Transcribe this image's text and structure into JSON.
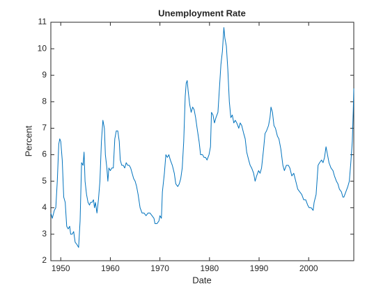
{
  "chart_data": {
    "type": "line",
    "title": "Unemployment Rate",
    "xlabel": "Date",
    "ylabel": "Percent",
    "x": [
      1948.0,
      1948.3,
      1948.7,
      1949.0,
      1949.3,
      1949.6,
      1949.8,
      1950.0,
      1950.3,
      1950.6,
      1950.9,
      1951.2,
      1951.5,
      1951.8,
      1952.0,
      1952.3,
      1952.6,
      1952.9,
      1953.3,
      1953.6,
      1953.9,
      1954.2,
      1954.5,
      1954.7,
      1954.9,
      1955.2,
      1955.5,
      1955.8,
      1956.0,
      1956.3,
      1956.6,
      1956.8,
      1957.0,
      1957.3,
      1957.6,
      1957.9,
      1958.2,
      1958.5,
      1958.8,
      1959.0,
      1959.3,
      1959.5,
      1959.7,
      1960.0,
      1960.3,
      1960.6,
      1960.9,
      1961.2,
      1961.5,
      1961.8,
      1962.0,
      1962.3,
      1962.6,
      1962.9,
      1963.2,
      1963.5,
      1963.8,
      1964.1,
      1964.4,
      1964.7,
      1965.0,
      1965.3,
      1965.6,
      1966.0,
      1966.4,
      1966.8,
      1967.2,
      1967.6,
      1968.0,
      1968.4,
      1968.8,
      1969.0,
      1969.4,
      1969.8,
      1970.0,
      1970.3,
      1970.5,
      1970.9,
      1971.2,
      1971.5,
      1971.8,
      1972.1,
      1972.5,
      1972.9,
      1973.2,
      1973.6,
      1973.9,
      1974.2,
      1974.5,
      1974.8,
      1975.1,
      1975.3,
      1975.5,
      1975.7,
      1976.0,
      1976.3,
      1976.6,
      1976.9,
      1977.2,
      1977.5,
      1977.9,
      1978.2,
      1978.6,
      1978.9,
      1979.2,
      1979.5,
      1979.9,
      1980.2,
      1980.4,
      1980.7,
      1981.0,
      1981.3,
      1981.7,
      1982.0,
      1982.3,
      1982.6,
      1982.9,
      1983.1,
      1983.4,
      1983.7,
      1984.0,
      1984.3,
      1984.6,
      1984.9,
      1985.2,
      1985.5,
      1985.9,
      1986.2,
      1986.5,
      1986.9,
      1987.2,
      1987.5,
      1987.9,
      1988.2,
      1988.5,
      1988.9,
      1989.2,
      1989.5,
      1989.9,
      1990.2,
      1990.5,
      1990.9,
      1991.2,
      1991.5,
      1991.9,
      1992.2,
      1992.4,
      1992.7,
      1993.0,
      1993.3,
      1993.7,
      1994.0,
      1994.4,
      1994.8,
      1995.1,
      1995.5,
      1995.9,
      1996.2,
      1996.6,
      1997.0,
      1997.4,
      1997.8,
      1998.2,
      1998.6,
      1999.0,
      1999.4,
      1999.8,
      2000.1,
      2000.5,
      2000.9,
      2001.1,
      2001.5,
      2001.9,
      2002.2,
      2002.6,
      2002.9,
      2003.2,
      2003.5,
      2003.8,
      2004.1,
      2004.5,
      2004.9,
      2005.2,
      2005.6,
      2005.9,
      2006.2,
      2006.6,
      2006.9,
      2007.1,
      2007.5,
      2007.9,
      2008.2,
      2008.5,
      2008.8,
      2009.0,
      2009.1
    ],
    "series": [
      {
        "name": "Unemployment Rate",
        "color": "#0072bd",
        "values": [
          3.8,
          3.6,
          3.9,
          4.0,
          5.0,
          6.4,
          6.6,
          6.5,
          5.8,
          4.4,
          4.2,
          3.3,
          3.2,
          3.3,
          3.0,
          3.0,
          3.1,
          2.7,
          2.6,
          2.5,
          3.5,
          5.7,
          5.6,
          6.1,
          5.0,
          4.5,
          4.2,
          4.1,
          4.2,
          4.2,
          4.3,
          4.0,
          4.2,
          3.8,
          4.3,
          5.0,
          6.5,
          7.3,
          7.0,
          6.0,
          5.5,
          5.0,
          5.5,
          5.4,
          5.5,
          5.5,
          6.6,
          6.9,
          6.9,
          6.5,
          5.8,
          5.6,
          5.6,
          5.5,
          5.7,
          5.6,
          5.6,
          5.5,
          5.3,
          5.1,
          5.0,
          4.8,
          4.5,
          4.0,
          3.8,
          3.8,
          3.7,
          3.8,
          3.8,
          3.7,
          3.6,
          3.4,
          3.4,
          3.5,
          3.7,
          3.6,
          4.6,
          5.3,
          6.0,
          5.9,
          6.0,
          5.8,
          5.6,
          5.3,
          4.9,
          4.8,
          4.9,
          5.1,
          5.5,
          6.5,
          8.2,
          8.7,
          8.8,
          8.4,
          7.9,
          7.6,
          7.8,
          7.7,
          7.4,
          7.0,
          6.5,
          6.0,
          6.0,
          5.9,
          5.9,
          5.8,
          6.0,
          6.3,
          7.6,
          7.5,
          7.2,
          7.4,
          7.6,
          8.5,
          9.4,
          9.9,
          10.8,
          10.4,
          10.1,
          9.2,
          8.0,
          7.4,
          7.5,
          7.2,
          7.3,
          7.2,
          7.0,
          7.2,
          7.1,
          6.8,
          6.6,
          6.1,
          5.8,
          5.6,
          5.5,
          5.3,
          5.0,
          5.2,
          5.4,
          5.3,
          5.5,
          6.2,
          6.8,
          6.9,
          7.1,
          7.4,
          7.8,
          7.6,
          7.1,
          7.0,
          6.7,
          6.6,
          6.2,
          5.6,
          5.4,
          5.6,
          5.6,
          5.5,
          5.2,
          5.3,
          5.0,
          4.7,
          4.6,
          4.5,
          4.3,
          4.3,
          4.1,
          4.0,
          4.0,
          3.9,
          4.2,
          4.5,
          5.6,
          5.7,
          5.8,
          5.7,
          5.9,
          6.3,
          6.0,
          5.7,
          5.5,
          5.4,
          5.2,
          5.0,
          4.9,
          4.7,
          4.6,
          4.4,
          4.4,
          4.6,
          4.8,
          5.0,
          5.7,
          6.5,
          7.7,
          8.5
        ]
      }
    ],
    "xlim": [
      1948,
      2009.1
    ],
    "xticks": [
      1950,
      1960,
      1970,
      1980,
      1990,
      2000
    ],
    "ylim": [
      2,
      11
    ],
    "yticks": [
      2,
      3,
      4,
      5,
      6,
      7,
      8,
      9,
      10,
      11
    ]
  }
}
